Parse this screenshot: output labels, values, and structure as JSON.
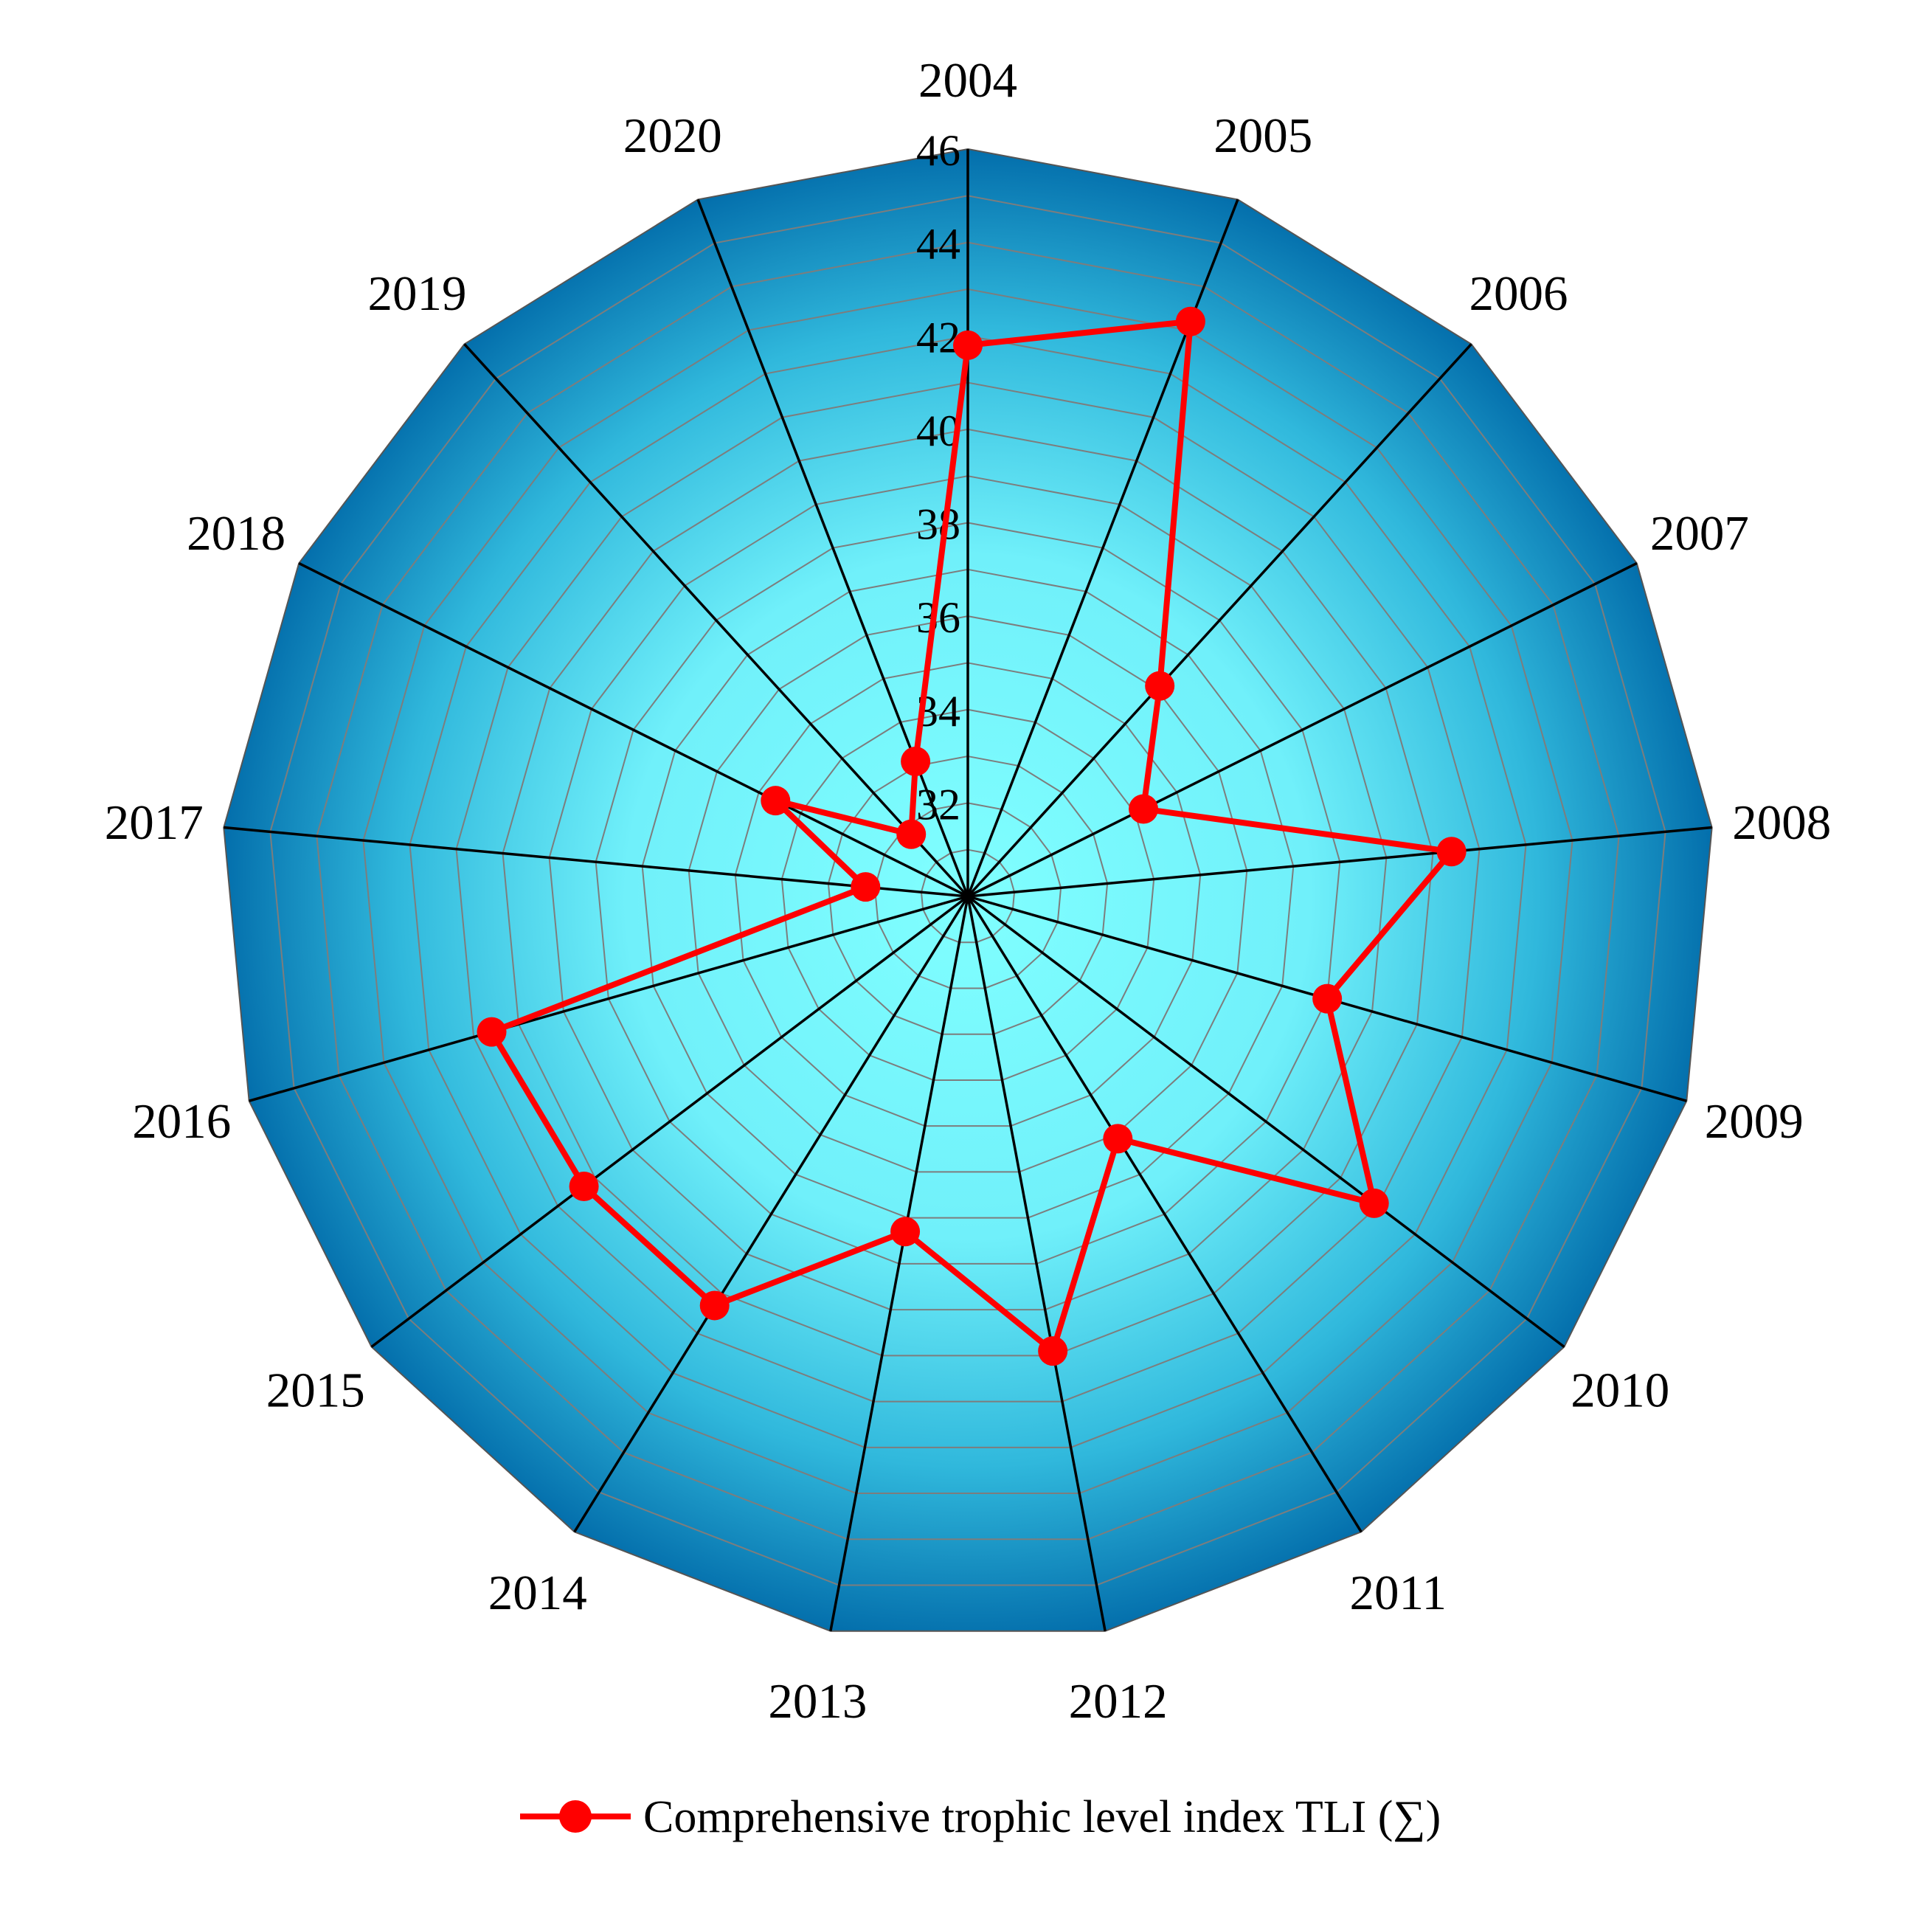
{
  "chart_data": {
    "type": "radar",
    "categories": [
      "2004",
      "2005",
      "2006",
      "2007",
      "2008",
      "2009",
      "2010",
      "2011",
      "2012",
      "2013",
      "2014",
      "2015",
      "2016",
      "2017",
      "2018",
      "2019",
      "2020"
    ],
    "series": [
      {
        "name": "Comprehensive trophic level index TLI (∑)",
        "values": [
          41.8,
          43.2,
          36.1,
          34.2,
          40.4,
          38.0,
          40.9,
          36.1,
          39.9,
          37.3,
          40.3,
          40.3,
          40.6,
          32.2,
          34.6,
          31.8,
          33.1
        ],
        "color": "#ff0000"
      }
    ],
    "r_axis": {
      "ticks": [
        "32",
        "34",
        "36",
        "38",
        "40",
        "42",
        "44",
        "46"
      ],
      "range": [
        30,
        46
      ]
    },
    "grid": true,
    "legend_position": "bottom",
    "colors": {
      "fill_outer": "#0069a8",
      "fill_inner": "#80ffff",
      "line": "#ff0000"
    }
  }
}
